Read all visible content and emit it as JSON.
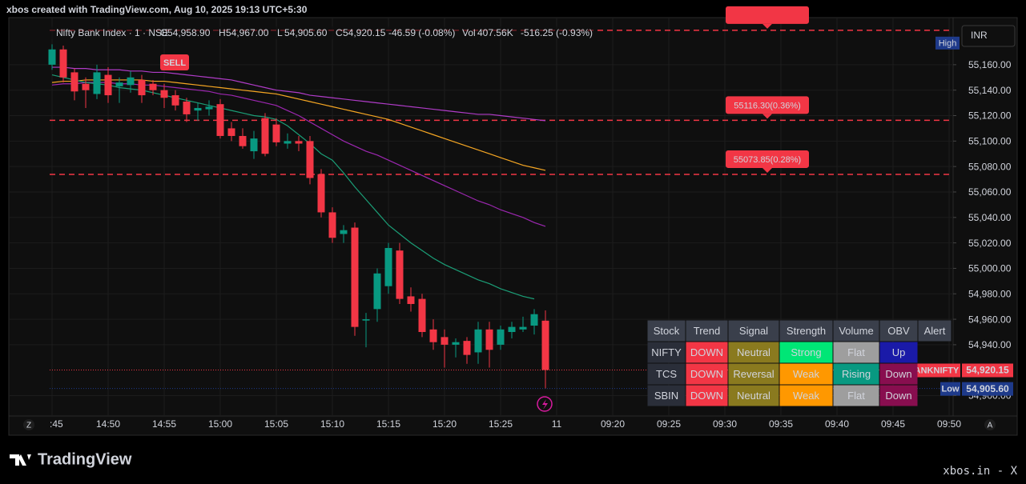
{
  "header": {
    "text": "xbos created with TradingView.com, Aug 10, 2025 19:13 UTC+5:30"
  },
  "chart_data": {
    "type": "candlestick",
    "title": "Nifty Bank Index · 1 · NSE",
    "ohlc_legend": [
      {
        "label": "O",
        "text": "54,958.90"
      },
      {
        "label": "H",
        "text": "54,967.00"
      },
      {
        "label": "L",
        "text": "54,905.60"
      },
      {
        "label": "C",
        "text": "54,920.15"
      }
    ],
    "change": "-46.59 (-0.08%)",
    "volume_label": "Vol",
    "volume": "407.56K",
    "volume_change": "-516.25 (-0.93%)",
    "currency": "INR",
    "up_color": "#089981",
    "down_color": "#f23645",
    "candles": {
      "open": [
        55160,
        55172,
        55154,
        55145,
        55137,
        55152,
        55143,
        55144,
        55148,
        55145,
        55140,
        55136,
        55131,
        55124,
        55125,
        55129,
        55110,
        55104,
        55092,
        55118,
        55113,
        55098,
        55100,
        55100,
        55074,
        55044,
        55027,
        55032,
        54959,
        54968,
        54986,
        55014,
        54978,
        54976,
        54952,
        54946,
        54940,
        54943,
        54934,
        54952,
        54940,
        54950,
        54952,
        54955,
        54958.9
      ],
      "high": [
        55176,
        55175,
        55157,
        55150,
        55160,
        55158,
        55150,
        55155,
        55152,
        55148,
        55145,
        55140,
        55134,
        55130,
        55132,
        55133,
        55115,
        55110,
        55108,
        55122,
        55118,
        55106,
        55104,
        55104,
        55078,
        55048,
        55034,
        55036,
        54965,
        55000,
        55020,
        55020,
        54985,
        54980,
        54960,
        54952,
        54945,
        54946,
        54958,
        54958,
        54955,
        54958,
        54962,
        54968,
        54967
      ],
      "low": [
        55156,
        55146,
        55132,
        55126,
        55133,
        55130,
        55130,
        55138,
        55130,
        55136,
        55126,
        55124,
        55115,
        55116,
        55120,
        55102,
        55100,
        55094,
        55086,
        55088,
        55096,
        55094,
        55092,
        55066,
        55040,
        55020,
        55020,
        54947,
        54938,
        54958,
        54980,
        54972,
        54966,
        54946,
        54936,
        54922,
        54930,
        54925,
        54925,
        54922,
        54936,
        54945,
        54950,
        54948,
        54905.6
      ],
      "close": [
        55172,
        55150,
        55139,
        55140,
        55154,
        55136,
        55146,
        55150,
        55136,
        55140,
        55134,
        55128,
        55121,
        55126,
        55127,
        55104,
        55104,
        55096,
        55102,
        55090,
        55099,
        55100,
        55098,
        55071,
        55044,
        55024,
        55030,
        54954,
        54960,
        54996,
        55016,
        54976,
        54972,
        54950,
        54942,
        54940,
        54942,
        54932,
        54952,
        54936,
        54952,
        54954,
        54954,
        54964,
        54920.15
      ]
    },
    "overlays": [
      {
        "color": "#b03cc8",
        "values": [
          55158,
          55158,
          55157,
          55157,
          55156,
          55156,
          55156,
          55155,
          55155,
          55154,
          55154,
          55153,
          55152,
          55151,
          55150,
          55149,
          55148,
          55146,
          55144,
          55142,
          55140,
          55139,
          55138,
          55136,
          55135,
          55134,
          55133,
          55132,
          55131,
          55130,
          55129,
          55128,
          55127,
          55126,
          55125,
          55124,
          55123,
          55122,
          55121,
          55121,
          55120,
          55119,
          55118,
          55117,
          55116
        ]
      },
      {
        "color": "#f5a623",
        "values": [
          55146,
          55147,
          55147,
          55148,
          55148,
          55148,
          55148,
          55148,
          55148,
          55147,
          55147,
          55146,
          55145,
          55144,
          55143,
          55142,
          55141,
          55140,
          55139,
          55138,
          55137,
          55135,
          55133,
          55131,
          55129,
          55127,
          55125,
          55123,
          55121,
          55119,
          55117,
          55114,
          55111,
          55108,
          55105,
          55102,
          55099,
          55096,
          55093,
          55090,
          55087,
          55084,
          55081,
          55079,
          55077
        ]
      },
      {
        "color": "#9c27b0",
        "values": [
          55144,
          55145,
          55145,
          55146,
          55146,
          55146,
          55145,
          55145,
          55144,
          55144,
          55143,
          55142,
          55141,
          55140,
          55139,
          55137,
          55136,
          55134,
          55132,
          55130,
          55128,
          55124,
          55120,
          55115,
          55110,
          55105,
          55100,
          55096,
          55092,
          55089,
          55085,
          55081,
          55077,
          55073,
          55069,
          55065,
          55061,
          55057,
          55053,
          55050,
          55046,
          55043,
          55040,
          55036,
          55033
        ]
      },
      {
        "color": "#1b9e77",
        "values": [
          55152,
          55150,
          55148,
          55146,
          55145,
          55144,
          55142,
          55141,
          55140,
          55138,
          55136,
          55134,
          55132,
          55130,
          55128,
          55126,
          55124,
          55122,
          55120,
          55119,
          55117,
          55112,
          55105,
          55098,
          55090,
          55085,
          55075,
          55064,
          55054,
          55044,
          55034,
          55027,
          55020,
          55014,
          55008,
          55003,
          54999,
          54995,
          54991,
          54988,
          54984,
          54981,
          54978,
          54976,
          null
        ]
      }
    ],
    "ylim": [
      54884,
      55197
    ],
    "yticks": [
      {
        "value": 55160,
        "label": "55,160.00"
      },
      {
        "value": 55140,
        "label": "55,140.00"
      },
      {
        "value": 55120,
        "label": "55,120.00"
      },
      {
        "value": 55100,
        "label": "55,100.00"
      },
      {
        "value": 55080,
        "label": "55,080.00"
      },
      {
        "value": 55060,
        "label": "55,060.00"
      },
      {
        "value": 55040,
        "label": "55,040.00"
      },
      {
        "value": 55020,
        "label": "55,020.00"
      },
      {
        "value": 55000,
        "label": "55,000.00"
      },
      {
        "value": 54980,
        "label": "54,980.00"
      },
      {
        "value": 54960,
        "label": "54,960.00"
      },
      {
        "value": 54940,
        "label": "54,940.00"
      },
      {
        "value": 54900,
        "label": "54,900.00"
      }
    ],
    "x_labels": [
      ":45",
      "14:50",
      "14:55",
      "15:00",
      "15:05",
      "15:10",
      "15:15",
      "15:20",
      "15:25",
      "11",
      "09:20",
      "09:25",
      "09:30",
      "09:35",
      "09:40",
      "09:45",
      "09:50"
    ],
    "levels": [
      {
        "value": 55187
      },
      {
        "value": 55116.3,
        "label": "55116.30(0.36%)"
      },
      {
        "value": 55073.85,
        "label": "55073.85(0.28%)"
      }
    ],
    "price_tags": [
      {
        "name": "BANKNIFTY",
        "value": 54920.15,
        "label": "54,920.15",
        "color": "#f23645"
      },
      {
        "name": "Low",
        "value": 54905.6,
        "label": "54,905.60",
        "color": "#1e3a8a"
      }
    ],
    "high_tag": {
      "name": "High",
      "value": 55177
    },
    "signal": "SELL",
    "grid": true
  },
  "table": {
    "header": [
      "Stock",
      "Trend",
      "Signal",
      "Strength",
      "Volume",
      "OBV",
      "Alert"
    ],
    "rows": [
      [
        "NIFTY",
        "DOWN",
        "Neutral",
        "Strong",
        "Flat",
        "Up"
      ],
      [
        "TCS",
        "DOWN",
        "Reversal",
        "Weak",
        "Rising",
        "Down"
      ],
      [
        "SBIN",
        "DOWN",
        "Neutral",
        "Weak",
        "Flat",
        "Down"
      ]
    ]
  },
  "axis_buttons": [
    "Z",
    "A"
  ],
  "footer": {
    "logo": "TradingView",
    "credit": "xbos.in - X"
  }
}
